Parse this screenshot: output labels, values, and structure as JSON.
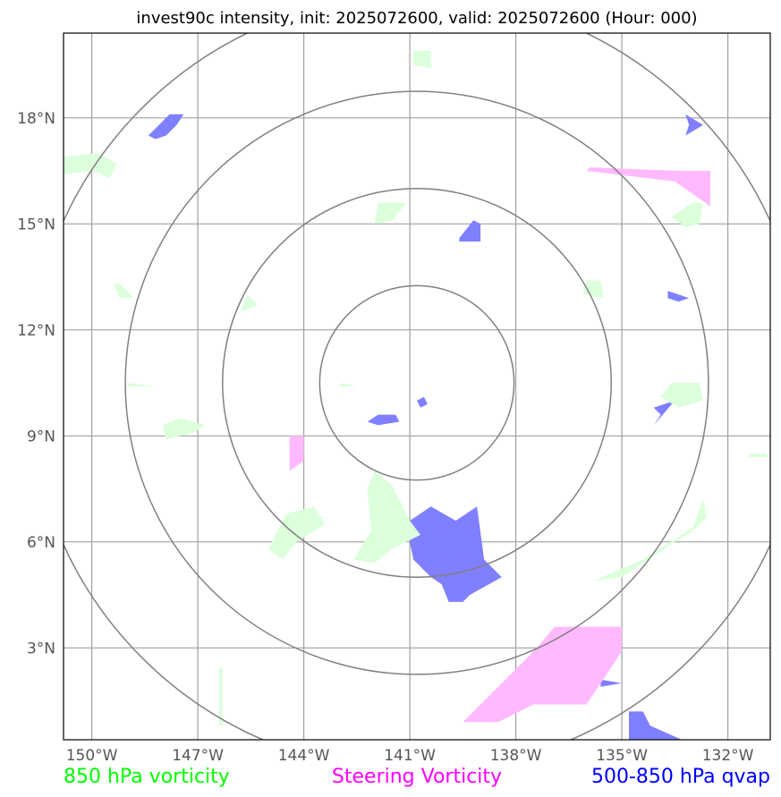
{
  "chart_data": {
    "type": "map",
    "title": "invest90c intensity, init: 2025072600, valid: 2025072600 (Hour: 000)",
    "x_ticks": [
      "150°W",
      "147°W",
      "144°W",
      "141°W",
      "138°W",
      "135°W",
      "132°W"
    ],
    "x_tick_values": [
      -150,
      -147,
      -144,
      -141,
      -138,
      -135,
      -132
    ],
    "y_ticks": [
      "18°N",
      "15°N",
      "12°N",
      "9°N",
      "6°N",
      "3°N"
    ],
    "y_tick_values": [
      18,
      15,
      12,
      9,
      6,
      3
    ],
    "xlim": [
      -150.8,
      -130.8
    ],
    "ylim": [
      0.4,
      20.4
    ],
    "grid": true,
    "center": {
      "lon": -140.8,
      "lat": 10.5
    },
    "range_rings_deg": [
      2.75,
      5.5,
      8.25,
      11.0
    ],
    "legend": [
      {
        "label": "850 hPa vorticity",
        "color": "#00ff00"
      },
      {
        "label": "Steering Vorticity",
        "color": "#ff00ff"
      },
      {
        "label": "500-850 hPa qvap",
        "color": "#0000ff"
      }
    ],
    "series": [
      {
        "key": "qvap",
        "color": "#0000ff",
        "fill": "#7f7fff",
        "polygons": [
          [
            [
              -141.0,
              6.6
            ],
            [
              -140.4,
              7.0
            ],
            [
              -139.7,
              6.6
            ],
            [
              -139.1,
              7.0
            ],
            [
              -138.9,
              5.5
            ],
            [
              -138.4,
              5.0
            ],
            [
              -139.3,
              4.5
            ],
            [
              -139.5,
              4.3
            ],
            [
              -139.9,
              4.3
            ],
            [
              -140.1,
              4.8
            ],
            [
              -140.4,
              5.0
            ],
            [
              -140.9,
              5.5
            ],
            [
              -141.0,
              6.0
            ]
          ],
          [
            [
              -148.1,
              17.8
            ],
            [
              -147.8,
              18.1
            ],
            [
              -147.4,
              18.1
            ],
            [
              -147.6,
              17.8
            ],
            [
              -147.9,
              17.5
            ],
            [
              -148.2,
              17.4
            ],
            [
              -148.4,
              17.5
            ]
          ],
          [
            [
              -139.6,
              14.6
            ],
            [
              -139.2,
              15.1
            ],
            [
              -139.0,
              15.0
            ],
            [
              -139.0,
              14.5
            ],
            [
              -139.6,
              14.5
            ]
          ],
          [
            [
              -141.9,
              9.6
            ],
            [
              -141.4,
              9.6
            ],
            [
              -141.3,
              9.4
            ],
            [
              -141.9,
              9.3
            ],
            [
              -142.2,
              9.4
            ]
          ],
          [
            [
              -140.8,
              10.0
            ],
            [
              -140.6,
              10.1
            ],
            [
              -140.5,
              9.9
            ],
            [
              -140.7,
              9.8
            ]
          ],
          [
            [
              -133.2,
              18.1
            ],
            [
              -132.7,
              17.8
            ],
            [
              -133.2,
              17.5
            ],
            [
              -133.1,
              17.8
            ]
          ],
          [
            [
              -133.7,
              13.1
            ],
            [
              -133.1,
              12.9
            ],
            [
              -133.4,
              12.8
            ],
            [
              -133.7,
              12.9
            ]
          ],
          [
            [
              -134.1,
              9.8
            ],
            [
              -133.5,
              10.0
            ],
            [
              -134.1,
              9.3
            ],
            [
              -133.9,
              9.6
            ]
          ],
          [
            [
              -134.8,
              1.2
            ],
            [
              -134.4,
              1.2
            ],
            [
              -134.2,
              0.8
            ],
            [
              -133.3,
              0.4
            ],
            [
              -134.8,
              0.4
            ]
          ],
          [
            [
              -135.6,
              2.1
            ],
            [
              -135.0,
              2.0
            ],
            [
              -135.6,
              1.9
            ]
          ]
        ]
      },
      {
        "key": "steering",
        "color": "#ff00ff",
        "fill": "#ffbaff",
        "polygons": [
          [
            [
              -136.9,
              3.6
            ],
            [
              -135.0,
              3.6
            ],
            [
              -135.0,
              2.9
            ],
            [
              -136.0,
              1.4
            ],
            [
              -137.5,
              1.4
            ],
            [
              -138.5,
              0.9
            ],
            [
              -139.5,
              0.9
            ],
            [
              -137.5,
              2.9
            ]
          ],
          [
            [
              -135.9,
              16.6
            ],
            [
              -133.4,
              16.5
            ],
            [
              -132.5,
              16.5
            ],
            [
              -132.5,
              15.5
            ],
            [
              -133.5,
              16.2
            ],
            [
              -136.0,
              16.5
            ]
          ],
          [
            [
              -144.4,
              9.0
            ],
            [
              -144.0,
              9.0
            ],
            [
              -144.0,
              8.3
            ],
            [
              -144.4,
              8.0
            ]
          ]
        ]
      },
      {
        "key": "vort850",
        "color": "#00ff00",
        "fill": "#dcffdc",
        "polygons": [
          [
            [
              -141.5,
              5.8
            ],
            [
              -140.7,
              6.2
            ],
            [
              -141.0,
              6.6
            ],
            [
              -141.5,
              7.6
            ],
            [
              -142.0,
              8.0
            ],
            [
              -142.2,
              7.5
            ],
            [
              -142.1,
              6.3
            ],
            [
              -142.6,
              5.5
            ],
            [
              -142.0,
              5.4
            ]
          ],
          [
            [
              -144.5,
              6.8
            ],
            [
              -143.7,
              7.0
            ],
            [
              -143.4,
              6.5
            ],
            [
              -144.2,
              6.0
            ],
            [
              -144.6,
              5.5
            ],
            [
              -145.0,
              5.8
            ]
          ],
          [
            [
              -134.4,
              5.5
            ],
            [
              -133.0,
              6.4
            ],
            [
              -132.7,
              7.2
            ],
            [
              -132.6,
              6.7
            ],
            [
              -133.0,
              6.3
            ],
            [
              -133.5,
              6.0
            ],
            [
              -134.4,
              5.4
            ],
            [
              -135.0,
              5.0
            ],
            [
              -135.8,
              4.9
            ]
          ],
          [
            [
              -133.6,
              10.5
            ],
            [
              -132.8,
              10.5
            ],
            [
              -132.7,
              10.0
            ],
            [
              -133.4,
              9.8
            ],
            [
              -133.9,
              10.1
            ]
          ],
          [
            [
              -147.5,
              9.5
            ],
            [
              -146.8,
              9.3
            ],
            [
              -147.1,
              9.1
            ],
            [
              -147.9,
              8.9
            ],
            [
              -148.0,
              9.3
            ]
          ],
          [
            [
              -149.8,
              17.0
            ],
            [
              -149.3,
              16.7
            ],
            [
              -149.5,
              16.3
            ],
            [
              -150.0,
              16.5
            ],
            [
              -150.8,
              16.4
            ],
            [
              -150.8,
              16.9
            ]
          ],
          [
            [
              -141.9,
              15.6
            ],
            [
              -141.1,
              15.6
            ],
            [
              -141.5,
              15.1
            ],
            [
              -142.0,
              15.0
            ]
          ],
          [
            [
              -133.0,
              15.6
            ],
            [
              -132.7,
              15.6
            ],
            [
              -132.8,
              15.0
            ],
            [
              -133.2,
              14.9
            ],
            [
              -133.6,
              15.2
            ]
          ],
          [
            [
              -140.9,
              19.9
            ],
            [
              -140.4,
              19.9
            ],
            [
              -140.4,
              19.4
            ],
            [
              -140.9,
              19.5
            ]
          ],
          [
            [
              -136.0,
              13.4
            ],
            [
              -135.6,
              13.4
            ],
            [
              -135.5,
              12.9
            ],
            [
              -136.1,
              13.0
            ]
          ],
          [
            [
              -149.2,
              13.3
            ],
            [
              -148.8,
              12.9
            ],
            [
              -149.2,
              12.9
            ],
            [
              -149.4,
              13.3
            ]
          ],
          [
            [
              -145.6,
              13.0
            ],
            [
              -145.3,
              12.7
            ],
            [
              -145.8,
              12.5
            ]
          ],
          [
            [
              -149.0,
              10.4
            ],
            [
              -148.2,
              10.4
            ],
            [
              -149.0,
              10.5
            ]
          ],
          [
            [
              -143.0,
              10.4
            ],
            [
              -142.5,
              10.4
            ],
            [
              -142.9,
              10.5
            ]
          ],
          [
            [
              -146.4,
              2.5
            ],
            [
              -146.3,
              2.4
            ],
            [
              -146.3,
              0.8
            ],
            [
              -146.4,
              0.8
            ]
          ],
          [
            [
              -131.4,
              8.5
            ],
            [
              -130.9,
              8.5
            ],
            [
              -130.9,
              8.4
            ],
            [
              -131.4,
              8.4
            ]
          ]
        ]
      }
    ]
  }
}
